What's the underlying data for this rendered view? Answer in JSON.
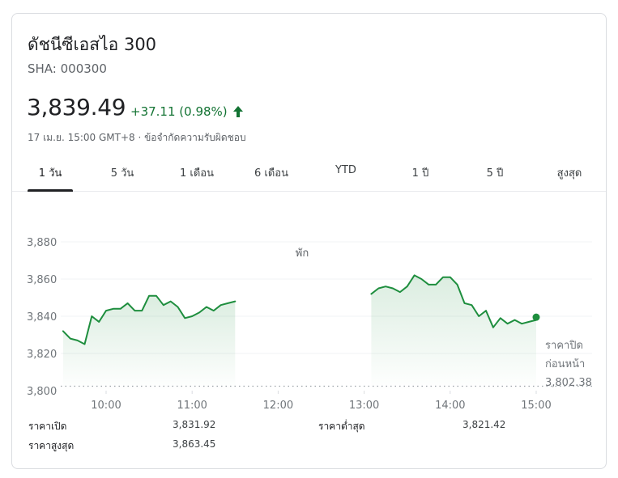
{
  "header": {
    "title": "ดัชนีซีเอสไอ 300",
    "ticker": "SHA: 000300",
    "price": "3,839.49",
    "change": "+37.11 (0.98%)",
    "timestamp": "17 เม.ย. 15:00 GMT+8 · ข้อจำกัดความรับผิดชอบ",
    "change_color": "#137333",
    "direction_icon": "arrow-up-icon"
  },
  "tabs": [
    {
      "label": "1 วัน",
      "active": true
    },
    {
      "label": "5 วัน",
      "active": false
    },
    {
      "label": "1 เดือน",
      "active": false
    },
    {
      "label": "6 เดือน",
      "active": false
    },
    {
      "label": "YTD",
      "active": false
    },
    {
      "label": "1 ปี",
      "active": false
    },
    {
      "label": "5 ปี",
      "active": false
    },
    {
      "label": "สูงสุด",
      "active": false
    }
  ],
  "chart_data": {
    "type": "line",
    "x_tick_labels": [
      "10:00",
      "11:00",
      "12:00",
      "13:00",
      "14:00",
      "15:00"
    ],
    "y_tick_labels": [
      "3,880",
      "3,860",
      "3,840",
      "3,820",
      "3,800"
    ],
    "ylim": [
      3800,
      3880
    ],
    "break_label": "พัก",
    "previous_close": {
      "label_line1": "ราคาปิด",
      "label_line2": "ก่อนหน้า",
      "value_label": "3,802.38",
      "value": 3802.38
    },
    "line_color": "#1e8e3e",
    "series": [
      {
        "segment": "morning",
        "x": [
          "09:30",
          "09:35",
          "09:40",
          "09:45",
          "09:50",
          "09:55",
          "10:00",
          "10:05",
          "10:10",
          "10:15",
          "10:20",
          "10:25",
          "10:30",
          "10:35",
          "10:40",
          "10:45",
          "10:50",
          "10:55",
          "11:00",
          "11:05",
          "11:10",
          "11:15",
          "11:20",
          "11:25",
          "11:30"
        ],
        "values": [
          3832,
          3828,
          3827,
          3825,
          3840,
          3837,
          3843,
          3844,
          3844,
          3847,
          3843,
          3843,
          3851,
          3851,
          3846,
          3848,
          3845,
          3839,
          3840,
          3842,
          3845,
          3843,
          3846,
          3847,
          3848
        ]
      },
      {
        "segment": "afternoon",
        "x": [
          "13:05",
          "13:10",
          "13:15",
          "13:20",
          "13:25",
          "13:30",
          "13:35",
          "13:40",
          "13:45",
          "13:50",
          "13:55",
          "14:00",
          "14:05",
          "14:10",
          "14:15",
          "14:20",
          "14:25",
          "14:30",
          "14:35",
          "14:40",
          "14:45",
          "14:50",
          "14:55",
          "15:00"
        ],
        "values": [
          3852,
          3855,
          3856,
          3855,
          3853,
          3856,
          3862,
          3860,
          3857,
          3857,
          3861,
          3861,
          3857,
          3847,
          3846,
          3840,
          3843,
          3834,
          3839,
          3836,
          3838,
          3836,
          3837,
          3838
        ]
      }
    ],
    "last_point": {
      "x": "15:00",
      "value": 3839.49
    }
  },
  "stats": [
    {
      "label": "ราคาเปิด",
      "value": "3,831.92"
    },
    {
      "label": "ราคาสูงสุด",
      "value": "3,863.45"
    },
    {
      "label": "ราคาต่ำสุด",
      "value": "3,821.42"
    }
  ]
}
